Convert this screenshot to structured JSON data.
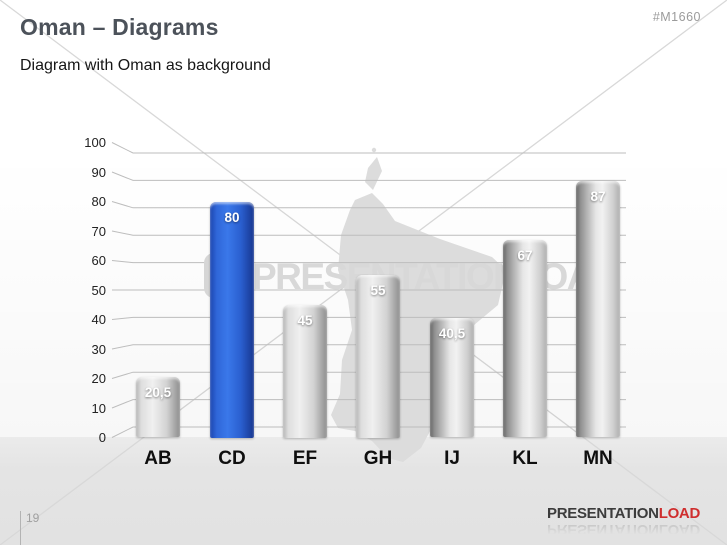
{
  "header": {
    "title": "Oman – Diagrams",
    "subtitle": "Diagram with Oman as background",
    "code": "#M1660"
  },
  "watermark": {
    "text": "PRESENTATIONLOAD",
    "logo": "presentationload-p-logo"
  },
  "chart_data": {
    "type": "bar",
    "categories": [
      "AB",
      "CD",
      "EF",
      "GH",
      "IJ",
      "KL",
      "MN"
    ],
    "values": [
      20.5,
      80,
      45,
      55,
      40.5,
      67,
      87
    ],
    "value_labels": [
      "20,5",
      "80",
      "45",
      "55",
      "40,5",
      "67",
      "87"
    ],
    "highlight_index": 1,
    "y_ticks": [
      0,
      10,
      20,
      30,
      40,
      50,
      60,
      70,
      80,
      90,
      100
    ],
    "ylim": [
      0,
      100
    ],
    "grid": true,
    "legend": "none",
    "title": "",
    "xlabel": "",
    "ylabel": "",
    "background_map": "oman-silhouette",
    "bar_color_default": "#c9c9c9",
    "bar_color_highlight": "#2a5fd0"
  },
  "colors": {
    "accent_blue": "#2a5fd0",
    "brand_red": "#cf2e2e",
    "title_gray": "#4c525a",
    "gridline": "#bdbdbd",
    "watermark_gray": "#d8d8d8",
    "footer_band": "#e4e4e4"
  },
  "footer": {
    "page_number": "19",
    "brand_part1": "PRESENTATION",
    "brand_part2": "LOAD"
  }
}
